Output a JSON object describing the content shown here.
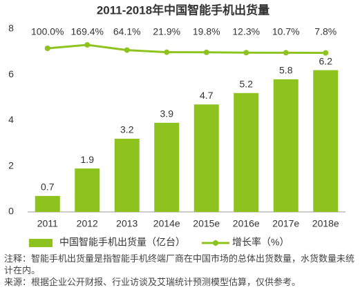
{
  "chart_data": {
    "type": "bar-line",
    "title": "2011-2018年中国智能手机出货量",
    "categories": [
      "2011",
      "2012",
      "2013",
      "2014e",
      "2015e",
      "2016e",
      "2017e",
      "2018e"
    ],
    "series": [
      {
        "name": "中国智能手机出货量（亿台）",
        "type": "bar",
        "color": "#8dc21f",
        "values": [
          0.7,
          1.9,
          3.2,
          3.9,
          4.7,
          5.2,
          5.8,
          6.2
        ]
      },
      {
        "name": "增长率（%）",
        "type": "line",
        "axis": "y2",
        "color": "#8dc21f",
        "values": [
          100.0,
          169.4,
          64.1,
          21.9,
          19.8,
          12.3,
          10.7,
          7.8
        ],
        "value_labels": [
          "100.0%",
          "169.4%",
          "64.1%",
          "21.9%",
          "19.8%",
          "12.3%",
          "10.7%",
          "7.8%"
        ]
      }
    ],
    "ylim": [
      0,
      8
    ],
    "yticks": [
      0,
      2,
      4,
      6,
      8
    ],
    "y2lim": [
      -3200,
      490
    ],
    "notes": [
      "注释：智能手机出货量是指智能手机终端厂商在中国市场的总体出货数量，水货数量未统计在内。",
      "来源：根据企业公开财报、行业访谈及艾瑞统计预测模型估算，仅供参考。"
    ]
  }
}
